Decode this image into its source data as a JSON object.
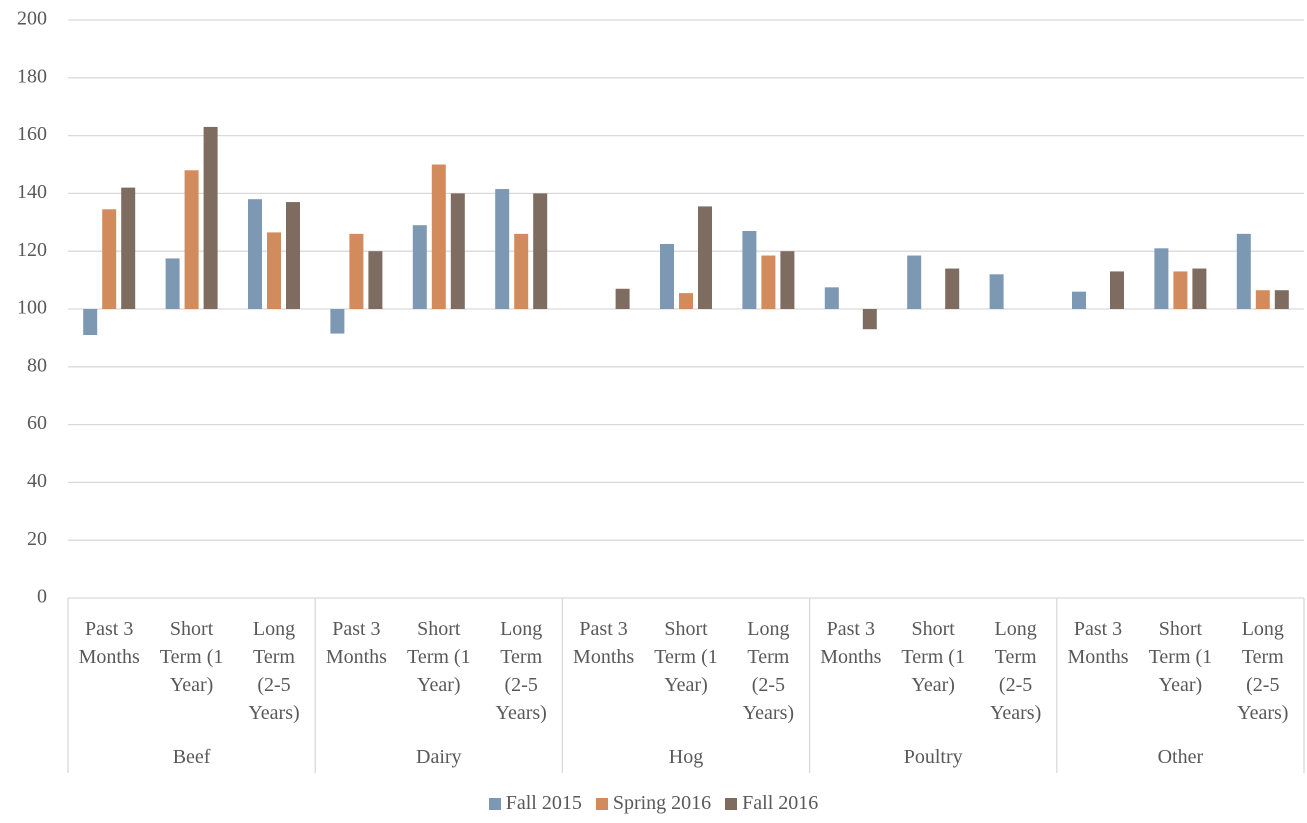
{
  "chart_data": {
    "type": "bar",
    "groups": [
      "Beef",
      "Dairy",
      "Hog",
      "Poultry",
      "Other"
    ],
    "categories": [
      "Past 3 Months",
      "Short Term (1 Year)",
      "Long Term (2-5 Years)",
      "Past 3 Months",
      "Short Term (1 Year)",
      "Long Term (2-5 Years)",
      "Past 3 Months",
      "Short Term (1 Year)",
      "Long Term (2-5 Years)",
      "Past 3 Months",
      "Short Term (1 Year)",
      "Long Term (2-5 Years)",
      "Past 3 Months",
      "Short Term (1 Year)",
      "Long Term (2-5 Years)"
    ],
    "series": [
      {
        "name": "Fall 2015",
        "color": "#7d98b3",
        "values": [
          91,
          117.5,
          138,
          91.5,
          129,
          141.5,
          null,
          122.5,
          127,
          107.5,
          118.5,
          112,
          106,
          121,
          126
        ]
      },
      {
        "name": "Spring 2016",
        "color": "#d28b5c",
        "values": [
          134.5,
          148,
          126.5,
          126,
          150,
          126,
          null,
          105.5,
          118.5,
          null,
          null,
          null,
          null,
          113,
          106.5
        ]
      },
      {
        "name": "Fall 2016",
        "color": "#7f6c61",
        "values": [
          142,
          163,
          137,
          120,
          140,
          140,
          107,
          135.5,
          120,
          93,
          114,
          null,
          113,
          114,
          106.5
        ]
      }
    ],
    "baseline": 100,
    "ylim": [
      0,
      200
    ],
    "yticks": [
      0,
      20,
      40,
      60,
      80,
      100,
      120,
      140,
      160,
      180,
      200
    ],
    "grid": true,
    "legend": "bottom"
  }
}
